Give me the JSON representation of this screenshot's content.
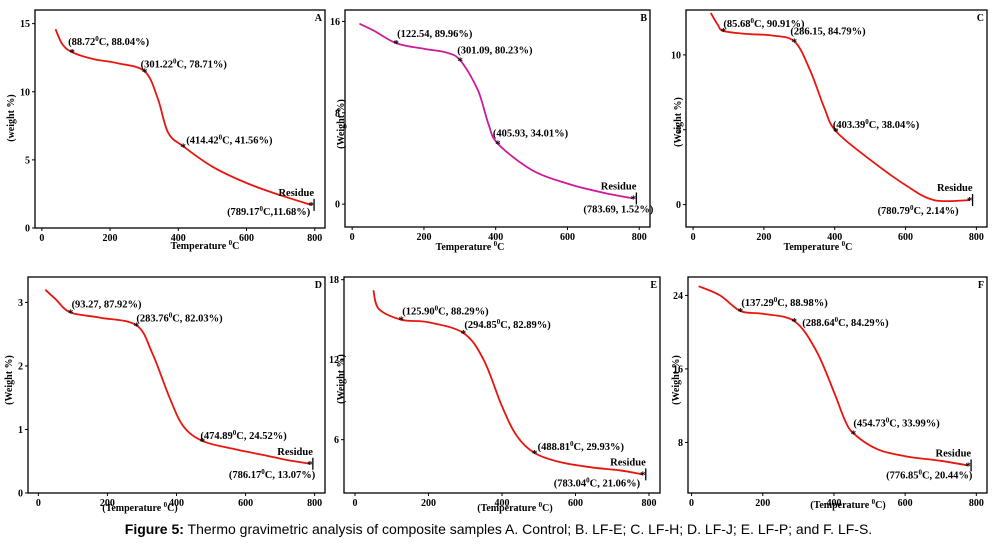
{
  "caption": {
    "prefix": "Figure 5:",
    "text": " Thermo gravimetric analysis of composite samples A. Control; B. LF-E; C. LF-H; D. LF-J; E. LF-P; and F. LF-S."
  },
  "chart_data": [
    {
      "type": "line",
      "letter": "A",
      "xlabel": "Temperature °C",
      "ylabel": "(weight %)",
      "xticks": [
        0,
        200,
        400,
        600,
        800
      ],
      "yticks": [
        0,
        5,
        10,
        15
      ],
      "xlim": [
        -20,
        830
      ],
      "ylim": [
        0,
        16
      ],
      "color": "#e8150f",
      "x": [
        40,
        60,
        88.72,
        150,
        220,
        301.22,
        340,
        370,
        414.42,
        500,
        600,
        700,
        789.17
      ],
      "y": [
        14.6,
        13.5,
        12.9,
        12.4,
        12.1,
        11.5,
        9.5,
        7.0,
        6.0,
        4.5,
        3.3,
        2.4,
        1.7
      ],
      "points": [
        {
          "x": 88.72,
          "y": 12.9,
          "label": "(88.72°C, 88.04%)"
        },
        {
          "x": 301.22,
          "y": 11.5,
          "label": "(301.22°C, 78.71%)"
        },
        {
          "x": 414.42,
          "y": 6.0,
          "label": "(414.42°C, 41.56%)"
        },
        {
          "x": 789.17,
          "y": 1.7,
          "label": "(789.17°C,11.68%)"
        }
      ],
      "residue": "Residue"
    },
    {
      "type": "line",
      "letter": "B",
      "xlabel": "Temperature °C",
      "ylabel": "(Weight %)",
      "xticks": [
        0,
        200,
        400,
        600,
        800
      ],
      "yticks": [
        0,
        8,
        16
      ],
      "xlim": [
        -20,
        830
      ],
      "ylim": [
        -2,
        17
      ],
      "color": "#cc1a9a",
      "x": [
        20,
        60,
        122.54,
        200,
        260,
        301.09,
        350,
        380,
        405.93,
        500,
        600,
        700,
        783.69
      ],
      "y": [
        15.8,
        15.2,
        14.1,
        13.6,
        13.3,
        12.6,
        10.0,
        7.0,
        5.3,
        3.0,
        1.8,
        1.0,
        0.5
      ],
      "points": [
        {
          "x": 122.54,
          "y": 14.1,
          "label": "(122.54, 89.96%)"
        },
        {
          "x": 301.09,
          "y": 12.6,
          "label": "(301.09, 80.23%)"
        },
        {
          "x": 405.93,
          "y": 5.3,
          "label": "(405.93, 34.01%)"
        },
        {
          "x": 783.69,
          "y": 0.5,
          "label": "(783.69, 1.52%)"
        }
      ],
      "residue": "Residue"
    },
    {
      "type": "line",
      "letter": "C",
      "xlabel": "Temperature °C",
      "ylabel": "(Weight %)",
      "xticks": [
        0,
        200,
        400,
        600,
        800
      ],
      "yticks": [
        0,
        5,
        10
      ],
      "xlim": [
        -20,
        830
      ],
      "ylim": [
        -1.5,
        13
      ],
      "color": "#e8150f",
      "x": [
        50,
        70,
        85.68,
        150,
        220,
        286.15,
        330,
        370,
        403.39,
        500,
        600,
        680,
        780.79
      ],
      "y": [
        12.8,
        12.0,
        11.6,
        11.4,
        11.3,
        10.9,
        9.0,
        6.5,
        4.9,
        3.0,
        1.3,
        0.3,
        0.3
      ],
      "points": [
        {
          "x": 85.68,
          "y": 11.6,
          "label": "(85.68°C, 90.91%)"
        },
        {
          "x": 286.15,
          "y": 10.9,
          "label": "(286.15, 84.79%)"
        },
        {
          "x": 403.39,
          "y": 4.9,
          "label": "(403.39°C, 38.04%)"
        },
        {
          "x": 780.79,
          "y": 0.3,
          "label": "(780.79°C, 2.14%)"
        }
      ],
      "residue": "Residue"
    },
    {
      "type": "line",
      "letter": "D",
      "xlabel": "(Temperature °C)",
      "ylabel": "(Weight %)",
      "xticks": [
        0,
        200,
        400,
        600,
        800
      ],
      "yticks": [
        0,
        1,
        2,
        3
      ],
      "xlim": [
        -30,
        830
      ],
      "ylim": [
        0,
        3.4
      ],
      "color": "#e8150f",
      "x": [
        20,
        50,
        93.27,
        180,
        283.76,
        330,
        380,
        420,
        474.89,
        560,
        650,
        720,
        786.17
      ],
      "y": [
        3.2,
        3.05,
        2.84,
        2.76,
        2.64,
        2.2,
        1.5,
        1.05,
        0.82,
        0.7,
        0.6,
        0.52,
        0.46
      ],
      "points": [
        {
          "x": 93.27,
          "y": 2.84,
          "label": "(93.27, 87.92%)"
        },
        {
          "x": 283.76,
          "y": 2.64,
          "label": "(283.76°C, 82.03%)"
        },
        {
          "x": 474.89,
          "y": 0.82,
          "label": "(474.89°C, 24.52%)"
        },
        {
          "x": 786.17,
          "y": 0.46,
          "label": "(786.17°C, 13.07%)"
        }
      ],
      "residue": "Residue"
    },
    {
      "type": "line",
      "letter": "E",
      "xlabel": "(Temperature °C)",
      "ylabel": "(Weight %)",
      "xticks": [
        0,
        200,
        400,
        600,
        800
      ],
      "yticks": [
        6,
        12,
        18
      ],
      "xlim": [
        -30,
        830
      ],
      "ylim": [
        2,
        18.2
      ],
      "color": "#e8150f",
      "x": [
        50,
        65,
        125.9,
        200,
        294.85,
        350,
        400,
        440,
        488.81,
        560,
        650,
        720,
        783.04
      ],
      "y": [
        17.2,
        15.8,
        15.0,
        14.8,
        14.0,
        12.0,
        8.5,
        6.3,
        5.0,
        4.3,
        3.9,
        3.7,
        3.4
      ],
      "points": [
        {
          "x": 125.9,
          "y": 15.0,
          "label": "(125.90°C, 88.29%)"
        },
        {
          "x": 294.85,
          "y": 14.0,
          "label": "(294.85°C, 82.89%)"
        },
        {
          "x": 488.81,
          "y": 5.0,
          "label": "(488.81°C, 29.93%)"
        },
        {
          "x": 783.04,
          "y": 3.4,
          "label": "(783.04°C, 21.06%)"
        }
      ],
      "residue": "Residue"
    },
    {
      "type": "line",
      "letter": "F",
      "xlabel": "(Temperature °C)",
      "ylabel": "(Weight %)",
      "xticks": [
        0,
        200,
        400,
        600,
        800
      ],
      "yticks": [
        8,
        16,
        24
      ],
      "xlim": [
        -10,
        830
      ],
      "ylim": [
        2.5,
        26
      ],
      "color": "#e8150f",
      "x": [
        20,
        80,
        137.29,
        200,
        288.64,
        350,
        400,
        430,
        454.73,
        520,
        600,
        700,
        776.85
      ],
      "y": [
        25,
        24,
        22.3,
        22,
        21.2,
        18,
        13.5,
        10.5,
        9.0,
        7.3,
        6.5,
        6.0,
        5.5
      ],
      "points": [
        {
          "x": 137.29,
          "y": 22.3,
          "label": "(137.29°C, 88.98%)"
        },
        {
          "x": 288.64,
          "y": 21.2,
          "label": "(288.64°C, 84.29%)"
        },
        {
          "x": 454.73,
          "y": 9.0,
          "label": "(454.73°C, 33.99%)"
        },
        {
          "x": 776.85,
          "y": 5.5,
          "label": "(776.85°C, 20.44%)"
        }
      ],
      "residue": "Residue"
    }
  ]
}
